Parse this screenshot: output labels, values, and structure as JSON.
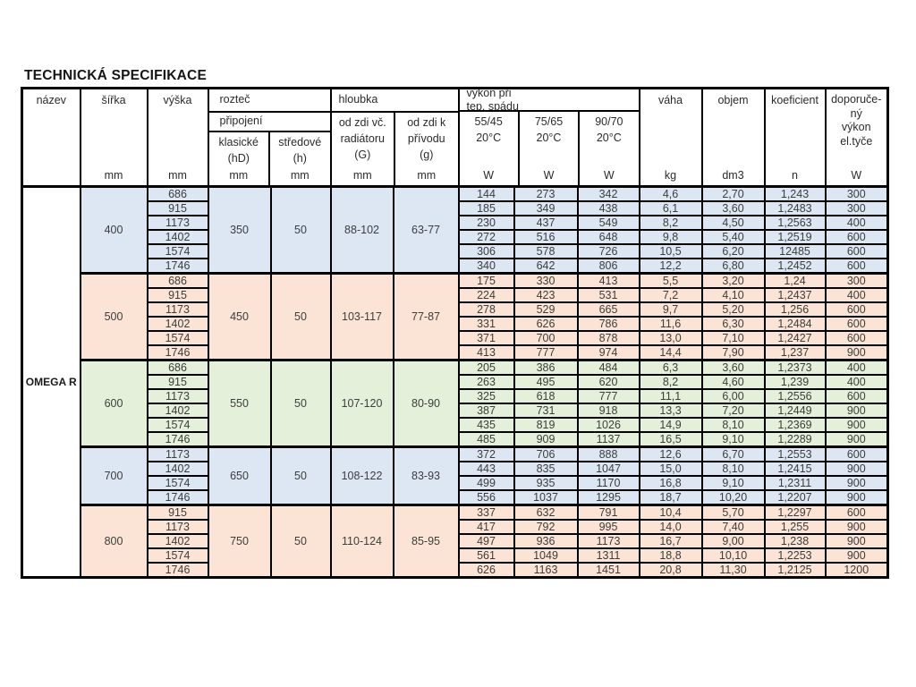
{
  "page_title": "TECHNICKÁ SPECIFIKACE",
  "product_name": "OMEGA R",
  "colors": {
    "blue": "#dce7f3",
    "salmon": "#fbe4d5",
    "green": "#e4f0d9"
  },
  "header": {
    "nazev": "název",
    "sirka": "šířka",
    "vyska": "výška",
    "roztec": "rozteč",
    "pripojeni": "připojení",
    "klasicke_l1": "klasické",
    "klasicke_l2": "(hD)",
    "stredove_l1": "středové",
    "stredove_l2": "(h)",
    "hloubka": "hloubka",
    "od_zdi_vc_l1": "od zdi  vč.",
    "od_zdi_vc_l2": "radiátoru",
    "od_zdi_vc_l3": "(G)",
    "od_zdi_k_l1": "od zdi  k",
    "od_zdi_k_l2": "přívodu",
    "od_zdi_k_l3": "(g)",
    "vykon_l1": "výkon při",
    "vykon_l2": "tep. spádu",
    "t55_l1": "55/45",
    "t55_l2": "20°C",
    "t75_l1": "75/65",
    "t75_l2": "20°C",
    "t90_l1": "90/70",
    "t90_l2": "20°C",
    "vaha": "váha",
    "objem": "objem",
    "koeficient": "koeficient",
    "dop_l1": "doporuče-",
    "dop_l2": "ný",
    "dop_l3": "výkon",
    "dop_l4": "el.tyče",
    "unit_mm": "mm",
    "unit_w": "W",
    "unit_kg": "kg",
    "unit_dm3": "dm3",
    "unit_n": "n"
  },
  "groups": [
    {
      "sirka": "400",
      "color": "blue",
      "klasicke": "350",
      "stredove": "50",
      "hloubka_g": "88-102",
      "hloubka_g2": "63-77",
      "rows": [
        [
          "686",
          "144",
          "273",
          "342",
          "4,6",
          "2,70",
          "1,243",
          "300"
        ],
        [
          "915",
          "185",
          "349",
          "438",
          "6,1",
          "3,60",
          "1,2483",
          "300"
        ],
        [
          "1173",
          "230",
          "437",
          "549",
          "8,2",
          "4,50",
          "1,2563",
          "400"
        ],
        [
          "1402",
          "272",
          "516",
          "648",
          "9,8",
          "5,40",
          "1,2519",
          "600"
        ],
        [
          "1574",
          "306",
          "578",
          "726",
          "10,5",
          "6,20",
          "12485",
          "600"
        ],
        [
          "1746",
          "340",
          "642",
          "806",
          "12,2",
          "6,80",
          "1,2452",
          "600"
        ]
      ]
    },
    {
      "sirka": "500",
      "color": "salmon",
      "klasicke": "450",
      "stredove": "50",
      "hloubka_g": "103-117",
      "hloubka_g2": "77-87",
      "rows": [
        [
          "686",
          "175",
          "330",
          "413",
          "5,5",
          "3,20",
          "1,24",
          "300"
        ],
        [
          "915",
          "224",
          "423",
          "531",
          "7,2",
          "4,10",
          "1,2437",
          "400"
        ],
        [
          "1173",
          "278",
          "529",
          "665",
          "9,7",
          "5,20",
          "1,256",
          "600"
        ],
        [
          "1402",
          "331",
          "626",
          "786",
          "11,6",
          "6,30",
          "1,2484",
          "600"
        ],
        [
          "1574",
          "371",
          "700",
          "878",
          "13,0",
          "7,10",
          "1,2427",
          "600"
        ],
        [
          "1746",
          "413",
          "777",
          "974",
          "14,4",
          "7,90",
          "1,237",
          "900"
        ]
      ]
    },
    {
      "sirka": "600",
      "color": "green",
      "klasicke": "550",
      "stredove": "50",
      "hloubka_g": "107-120",
      "hloubka_g2": "80-90",
      "rows": [
        [
          "686",
          "205",
          "386",
          "484",
          "6,3",
          "3,60",
          "1,2373",
          "400"
        ],
        [
          "915",
          "263",
          "495",
          "620",
          "8,2",
          "4,60",
          "1,239",
          "400"
        ],
        [
          "1173",
          "325",
          "618",
          "777",
          "11,1",
          "6,00",
          "1,2556",
          "600"
        ],
        [
          "1402",
          "387",
          "731",
          "918",
          "13,3",
          "7,20",
          "1,2449",
          "900"
        ],
        [
          "1574",
          "435",
          "819",
          "1026",
          "14,9",
          "8,10",
          "1,2369",
          "900"
        ],
        [
          "1746",
          "485",
          "909",
          "1137",
          "16,5",
          "9,10",
          "1,2289",
          "900"
        ]
      ]
    },
    {
      "sirka": "700",
      "color": "blue",
      "klasicke": "650",
      "stredove": "50",
      "hloubka_g": "108-122",
      "hloubka_g2": "83-93",
      "rows": [
        [
          "1173",
          "372",
          "706",
          "888",
          "12,6",
          "6,70",
          "1,2553",
          "600"
        ],
        [
          "1402",
          "443",
          "835",
          "1047",
          "15,0",
          "8,10",
          "1,2415",
          "900"
        ],
        [
          "1574",
          "499",
          "935",
          "1170",
          "16,8",
          "9,10",
          "1,2311",
          "900"
        ],
        [
          "1746",
          "556",
          "1037",
          "1295",
          "18,7",
          "10,20",
          "1,2207",
          "900"
        ]
      ]
    },
    {
      "sirka": "800",
      "color": "salmon",
      "klasicke": "750",
      "stredove": "50",
      "hloubka_g": "110-124",
      "hloubka_g2": "85-95",
      "rows": [
        [
          "915",
          "337",
          "632",
          "791",
          "10,4",
          "5,70",
          "1,2297",
          "600"
        ],
        [
          "1173",
          "417",
          "792",
          "995",
          "14,0",
          "7,40",
          "1,255",
          "900"
        ],
        [
          "1402",
          "497",
          "936",
          "1173",
          "16,7",
          "9,00",
          "1,238",
          "900"
        ],
        [
          "1574",
          "561",
          "1049",
          "1311",
          "18,8",
          "10,10",
          "1,2253",
          "900"
        ],
        [
          "1746",
          "626",
          "1163",
          "1451",
          "20,8",
          "11,30",
          "1,2125",
          "1200"
        ]
      ]
    }
  ]
}
